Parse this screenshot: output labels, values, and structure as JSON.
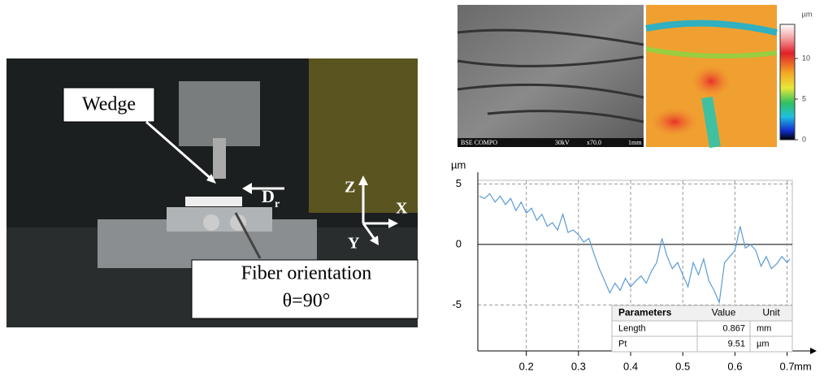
{
  "photo": {
    "wedge_label": "Wedge",
    "force_label": "D",
    "force_subscript": "r",
    "axis_z": "Z",
    "axis_x": "X",
    "axis_y": "Y",
    "fiber_label_line1": "Fiber orientation",
    "fiber_label_line2": "θ=90°"
  },
  "sem": {
    "mode": "BSE COMPO",
    "voltage": "30kV",
    "magnification": "x70.0",
    "scale": "1mm"
  },
  "colorbar": {
    "unit": "µm",
    "range": [
      0,
      14.2
    ],
    "ticks": [
      10,
      5,
      0
    ]
  },
  "chart_data": {
    "type": "line",
    "y_unit": "µm",
    "x_unit": "mm",
    "x": [
      0.11,
      0.12,
      0.13,
      0.14,
      0.15,
      0.16,
      0.17,
      0.18,
      0.19,
      0.2,
      0.21,
      0.22,
      0.23,
      0.24,
      0.25,
      0.26,
      0.27,
      0.28,
      0.29,
      0.3,
      0.31,
      0.32,
      0.33,
      0.34,
      0.35,
      0.36,
      0.37,
      0.38,
      0.39,
      0.4,
      0.41,
      0.42,
      0.43,
      0.44,
      0.45,
      0.46,
      0.47,
      0.48,
      0.49,
      0.5,
      0.51,
      0.52,
      0.53,
      0.54,
      0.55,
      0.56,
      0.57,
      0.58,
      0.59,
      0.6,
      0.61,
      0.62,
      0.63,
      0.64,
      0.65,
      0.66,
      0.67,
      0.68,
      0.69,
      0.7,
      0.705
    ],
    "series": [
      {
        "color": "#5b9bd5",
        "values": [
          4.0,
          3.8,
          4.2,
          3.5,
          4.0,
          3.3,
          3.8,
          2.8,
          3.5,
          2.6,
          3.0,
          2.0,
          2.5,
          1.5,
          1.8,
          1.2,
          2.5,
          1.0,
          1.2,
          0.8,
          0.2,
          0.5,
          -0.8,
          -2.0,
          -3.0,
          -4.0,
          -3.2,
          -3.8,
          -2.8,
          -3.5,
          -3.0,
          -2.6,
          -3.2,
          -2.2,
          -1.5,
          0.5,
          -1.0,
          -2.0,
          -1.5,
          -2.5,
          -3.5,
          -1.5,
          -2.5,
          -1.2,
          -3.0,
          -3.8,
          -4.8,
          -1.5,
          -1.0,
          -0.5,
          1.5,
          -0.3,
          0.0,
          -0.5,
          -1.8,
          -1.0,
          -2.0,
          -1.6,
          -1.0,
          -1.5,
          -1.2
        ]
      }
    ],
    "xlim": [
      0.107,
      0.71
    ],
    "ylim": [
      -8.8,
      5.3
    ],
    "xticks": [
      0.2,
      0.3,
      0.4,
      0.5,
      0.6,
      0.7
    ],
    "yticks": [
      5,
      0,
      -5
    ],
    "grid": true
  },
  "parameters_table": {
    "header": [
      "Parameters",
      "Value",
      "Unit"
    ],
    "rows": [
      [
        "Length",
        0.867,
        "mm"
      ],
      [
        "Pt",
        9.51,
        "µm"
      ]
    ]
  }
}
